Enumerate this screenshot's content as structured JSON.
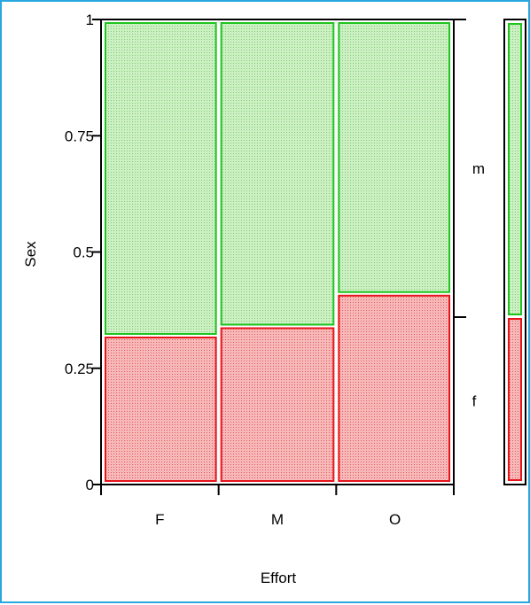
{
  "chart_data": {
    "type": "mosaic",
    "xlabel": "Effort",
    "ylabel": "Sex",
    "categories": [
      "F",
      "M",
      "O"
    ],
    "column_widths": [
      0.333,
      0.333,
      0.333
    ],
    "levels": [
      "f",
      "m"
    ],
    "series": [
      {
        "name": "f",
        "values": [
          0.32,
          0.34,
          0.41
        ]
      },
      {
        "name": "m",
        "values": [
          0.68,
          0.66,
          0.59
        ]
      }
    ],
    "overall": {
      "f": 0.36,
      "m": 0.64
    },
    "ylim": [
      0,
      1
    ],
    "yticks": [
      {
        "value": 0,
        "label": "0"
      },
      {
        "value": 0.25,
        "label": "0.25"
      },
      {
        "value": 0.5,
        "label": "0.5"
      },
      {
        "value": 0.75,
        "label": "0.75"
      },
      {
        "value": 1,
        "label": "1"
      }
    ],
    "colors": {
      "f_fill": "#f29b9b",
      "f_stroke": "#e8141c",
      "m_fill": "#b2e3a7",
      "m_stroke": "#1fc41f",
      "frame": "#29a8e0"
    }
  }
}
